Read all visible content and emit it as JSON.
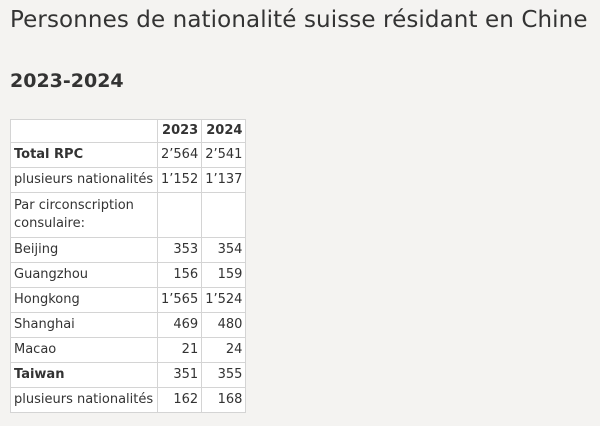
{
  "title": "Personnes de nationalité suisse résidant en Chine",
  "subtitle": "2023-2024",
  "table": {
    "columns": [
      "",
      "2023",
      "2024"
    ],
    "rows": [
      {
        "label": "Total RPC",
        "v2023": "2’564",
        "v2024": "2’541",
        "bold": true
      },
      {
        "label": "plusieurs nationalités",
        "v2023": "1’152",
        "v2024": "1’137",
        "bold": false
      },
      {
        "label": "Par circonscription consulaire:",
        "v2023": "",
        "v2024": "",
        "bold": false
      },
      {
        "label": "Beijing",
        "v2023": "353",
        "v2024": "354",
        "bold": false
      },
      {
        "label": "Guangzhou",
        "v2023": "156",
        "v2024": "159",
        "bold": false
      },
      {
        "label": "Hongkong",
        "v2023": "1’565",
        "v2024": "1’524",
        "bold": false
      },
      {
        "label": "Shanghai",
        "v2023": "469",
        "v2024": "480",
        "bold": false
      },
      {
        "label": "Macao",
        "v2023": "21",
        "v2024": "24",
        "bold": false
      },
      {
        "label": "Taiwan",
        "v2023": "351",
        "v2024": "355",
        "bold": true
      },
      {
        "label": "plusieurs nationalités",
        "v2023": "162",
        "v2024": "168",
        "bold": false
      }
    ]
  }
}
